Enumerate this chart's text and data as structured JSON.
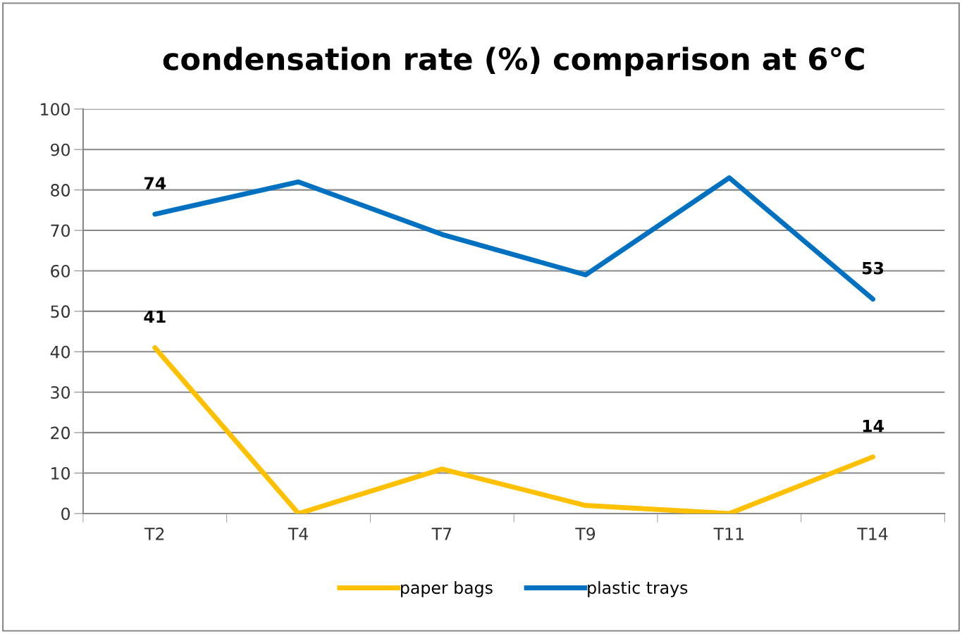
{
  "chart_data": {
    "type": "line",
    "title": "condensation rate (%) comparison at 6°C",
    "categories": [
      "T2",
      "T4",
      "T7",
      "T9",
      "T11",
      "T14"
    ],
    "series": [
      {
        "name": "paper bags",
        "color": "#ffc000",
        "values": [
          41,
          0,
          11,
          2,
          0,
          14
        ],
        "value_labels": [
          "41",
          null,
          null,
          null,
          null,
          "14"
        ]
      },
      {
        "name": "plastic trays",
        "color": "#0070c0",
        "values": [
          74,
          82,
          69,
          59,
          83,
          53
        ],
        "value_labels": [
          "74",
          null,
          null,
          null,
          null,
          "53"
        ]
      }
    ],
    "ylim": [
      0,
      100
    ],
    "yticks": [
      0,
      10,
      20,
      30,
      40,
      50,
      60,
      70,
      80,
      90,
      100
    ],
    "grid": "y",
    "legend": "bottom",
    "marker": "none",
    "line_style": "solid"
  }
}
